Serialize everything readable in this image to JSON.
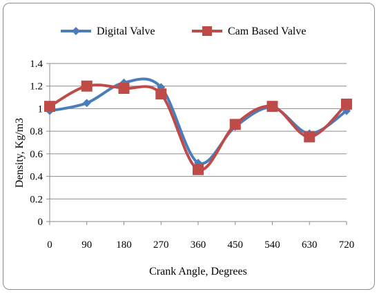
{
  "chart_data": {
    "type": "line",
    "title": "",
    "xlabel": "Crank Angle, Degrees",
    "ylabel": "Density, Kg/m3",
    "x": [
      0,
      90,
      180,
      270,
      360,
      450,
      540,
      630,
      720
    ],
    "x_tick_labels": [
      "0",
      "90",
      "180",
      "270",
      "360",
      "450",
      "540",
      "630",
      "720"
    ],
    "y_tick_labels": [
      "0",
      "0.2",
      "0.4",
      "0.6",
      "0.8",
      "1",
      "1.2",
      "1.4"
    ],
    "ylim": [
      0,
      1.4
    ],
    "xlim": [
      0,
      720
    ],
    "grid": "horizontal",
    "legend_position": "top",
    "smooth": true,
    "series": [
      {
        "name": "Digital Valve",
        "marker": "diamond",
        "color": "#4a7ebb",
        "values": [
          0.98,
          1.05,
          1.23,
          1.19,
          0.52,
          0.84,
          1.01,
          0.78,
          0.98
        ]
      },
      {
        "name": "Cam Based Valve",
        "marker": "square",
        "color": "#be4b48",
        "values": [
          1.02,
          1.2,
          1.18,
          1.13,
          0.46,
          0.86,
          1.02,
          0.75,
          1.04
        ]
      }
    ]
  }
}
